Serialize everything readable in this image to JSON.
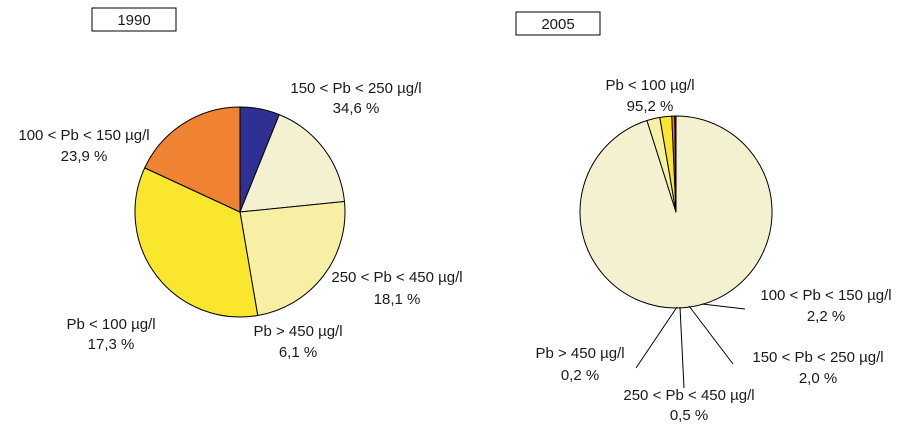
{
  "chart_data": [
    {
      "type": "pie",
      "title": "1990",
      "start_angle_deg": 90,
      "direction": "clockwise",
      "slices": [
        {
          "label": "Pb > 450 µg/l",
          "value": 6.1,
          "value_label": "6,1 %",
          "color": "#2e3192"
        },
        {
          "label": "Pb < 100 µg/l",
          "value": 17.3,
          "value_label": "17,3 %",
          "color": "#f4f1d0"
        },
        {
          "label": "100 < Pb < 150 µg/l",
          "value": 23.9,
          "value_label": "23,9 %",
          "color": "#f7efa3"
        },
        {
          "label": "150 < Pb < 250 µg/l",
          "value": 34.6,
          "value_label": "34,6 %",
          "color": "#fbe62e"
        },
        {
          "label": "250 < Pb < 450 µg/l",
          "value": 18.1,
          "value_label": "18,1 %",
          "color": "#f08331"
        }
      ]
    },
    {
      "type": "pie",
      "title": "2005",
      "start_angle_deg": 90,
      "direction": "clockwise",
      "slices": [
        {
          "label": "Pb < 100 µg/l",
          "value": 95.2,
          "value_label": "95,2 %",
          "color": "#f4f1d0"
        },
        {
          "label": "100 < Pb < 150 µg/l",
          "value": 2.2,
          "value_label": "2,2 %",
          "color": "#f7efa3"
        },
        {
          "label": "150 < Pb < 250 µg/l",
          "value": 2.0,
          "value_label": "2,0 %",
          "color": "#fbe62e"
        },
        {
          "label": "250 < Pb < 450 µg/l",
          "value": 0.5,
          "value_label": "0,5 %",
          "color": "#f08331"
        },
        {
          "label": "Pb > 450 µg/l",
          "value": 0.2,
          "value_label": "0,2 %",
          "color": "#2e3192"
        }
      ]
    }
  ]
}
